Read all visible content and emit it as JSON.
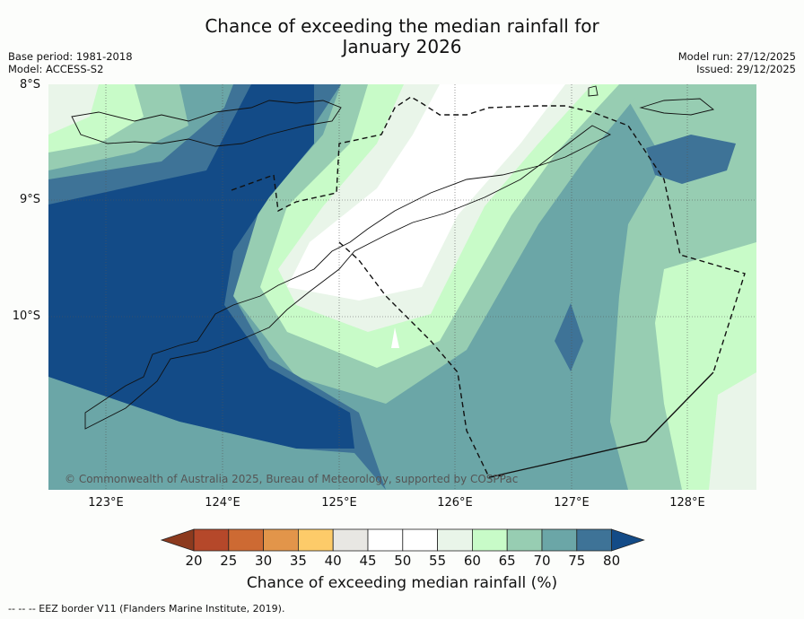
{
  "title": {
    "line1": "Chance of exceeding the median rainfall for",
    "line2": "January 2026"
  },
  "meta_left": {
    "base_period": "Base period: 1981-2018",
    "model": "Model: ACCESS-S2"
  },
  "meta_right": {
    "model_run": "Model run: 27/12/2025",
    "issued": "Issued: 29/12/2025"
  },
  "map": {
    "lat_labels": [
      "8°S",
      "9°S",
      "10°S"
    ],
    "lon_labels": [
      "123°E",
      "124°E",
      "125°E",
      "126°E",
      "127°E",
      "128°E"
    ],
    "copyright": "© Commonwealth of Australia 2025, Bureau of Meteorology, supported by COSPPac"
  },
  "colorbar": {
    "labels": [
      "20",
      "25",
      "30",
      "35",
      "40",
      "45",
      "50",
      "55",
      "60",
      "65",
      "70",
      "75",
      "80"
    ],
    "colors": [
      "#8c3a1e",
      "#b5482a",
      "#cd6a33",
      "#e2954a",
      "#fdcb69",
      "#e8e7e3",
      "#ffffff",
      "#ffffff",
      "#e9f5e9",
      "#c8fbc8",
      "#97cdb2",
      "#6ba6a7",
      "#3e7397",
      "#134b87"
    ],
    "title": "Chance of exceeding median rainfall (%)"
  },
  "footer": "--  --  -- EEZ border V11 (Flanders Marine Institute, 2019)."
}
